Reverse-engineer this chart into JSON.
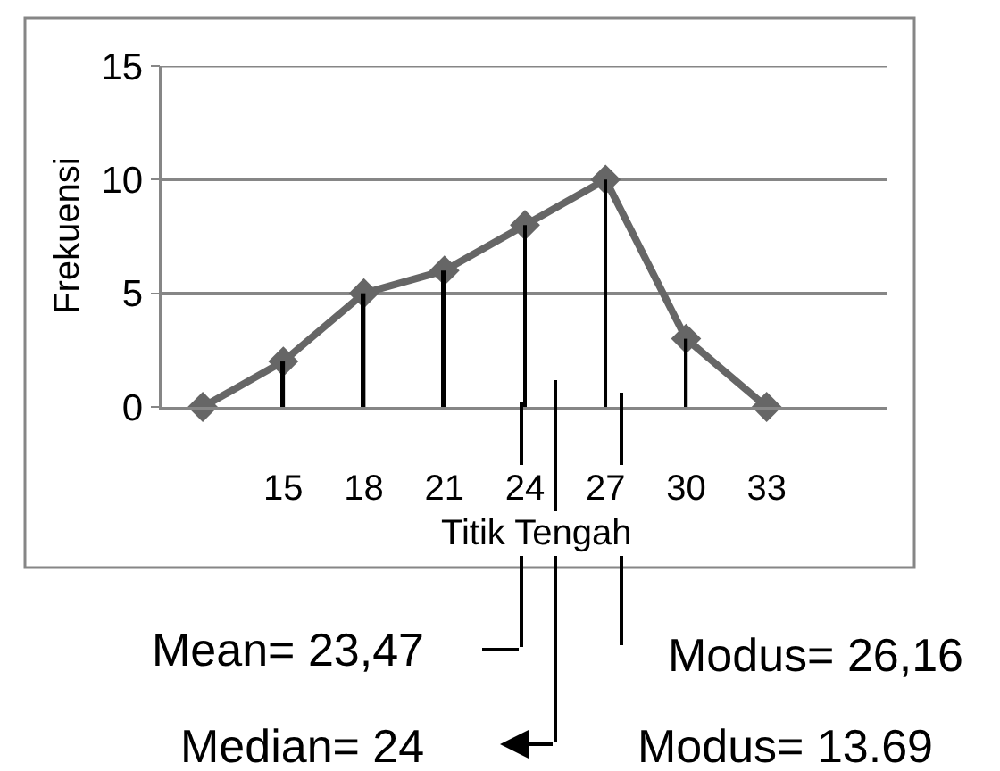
{
  "chart_data": {
    "type": "line",
    "xlabel": "Titik Tengah",
    "ylabel": "Frekuensi",
    "categories": [
      null,
      "15",
      "18",
      "21",
      "24",
      "27",
      "30",
      "33",
      null
    ],
    "series": [
      {
        "values": [
          0,
          2,
          5,
          6,
          8,
          10,
          3,
          0,
          null
        ],
        "color": "#666666"
      },
      {
        "type": "bar",
        "color": "#000000",
        "values": [
          0,
          2,
          5,
          6,
          8,
          10,
          3,
          0,
          null
        ]
      }
    ],
    "ylim": [
      0,
      15
    ],
    "yticks": [
      0,
      5,
      10,
      15
    ],
    "grid": "y",
    "marker": "diamond",
    "line_style": "solid",
    "annotations": [
      "Mean= 23,47",
      "Median= 24",
      "Modus= 26,16",
      "Modus= 13.69"
    ]
  }
}
